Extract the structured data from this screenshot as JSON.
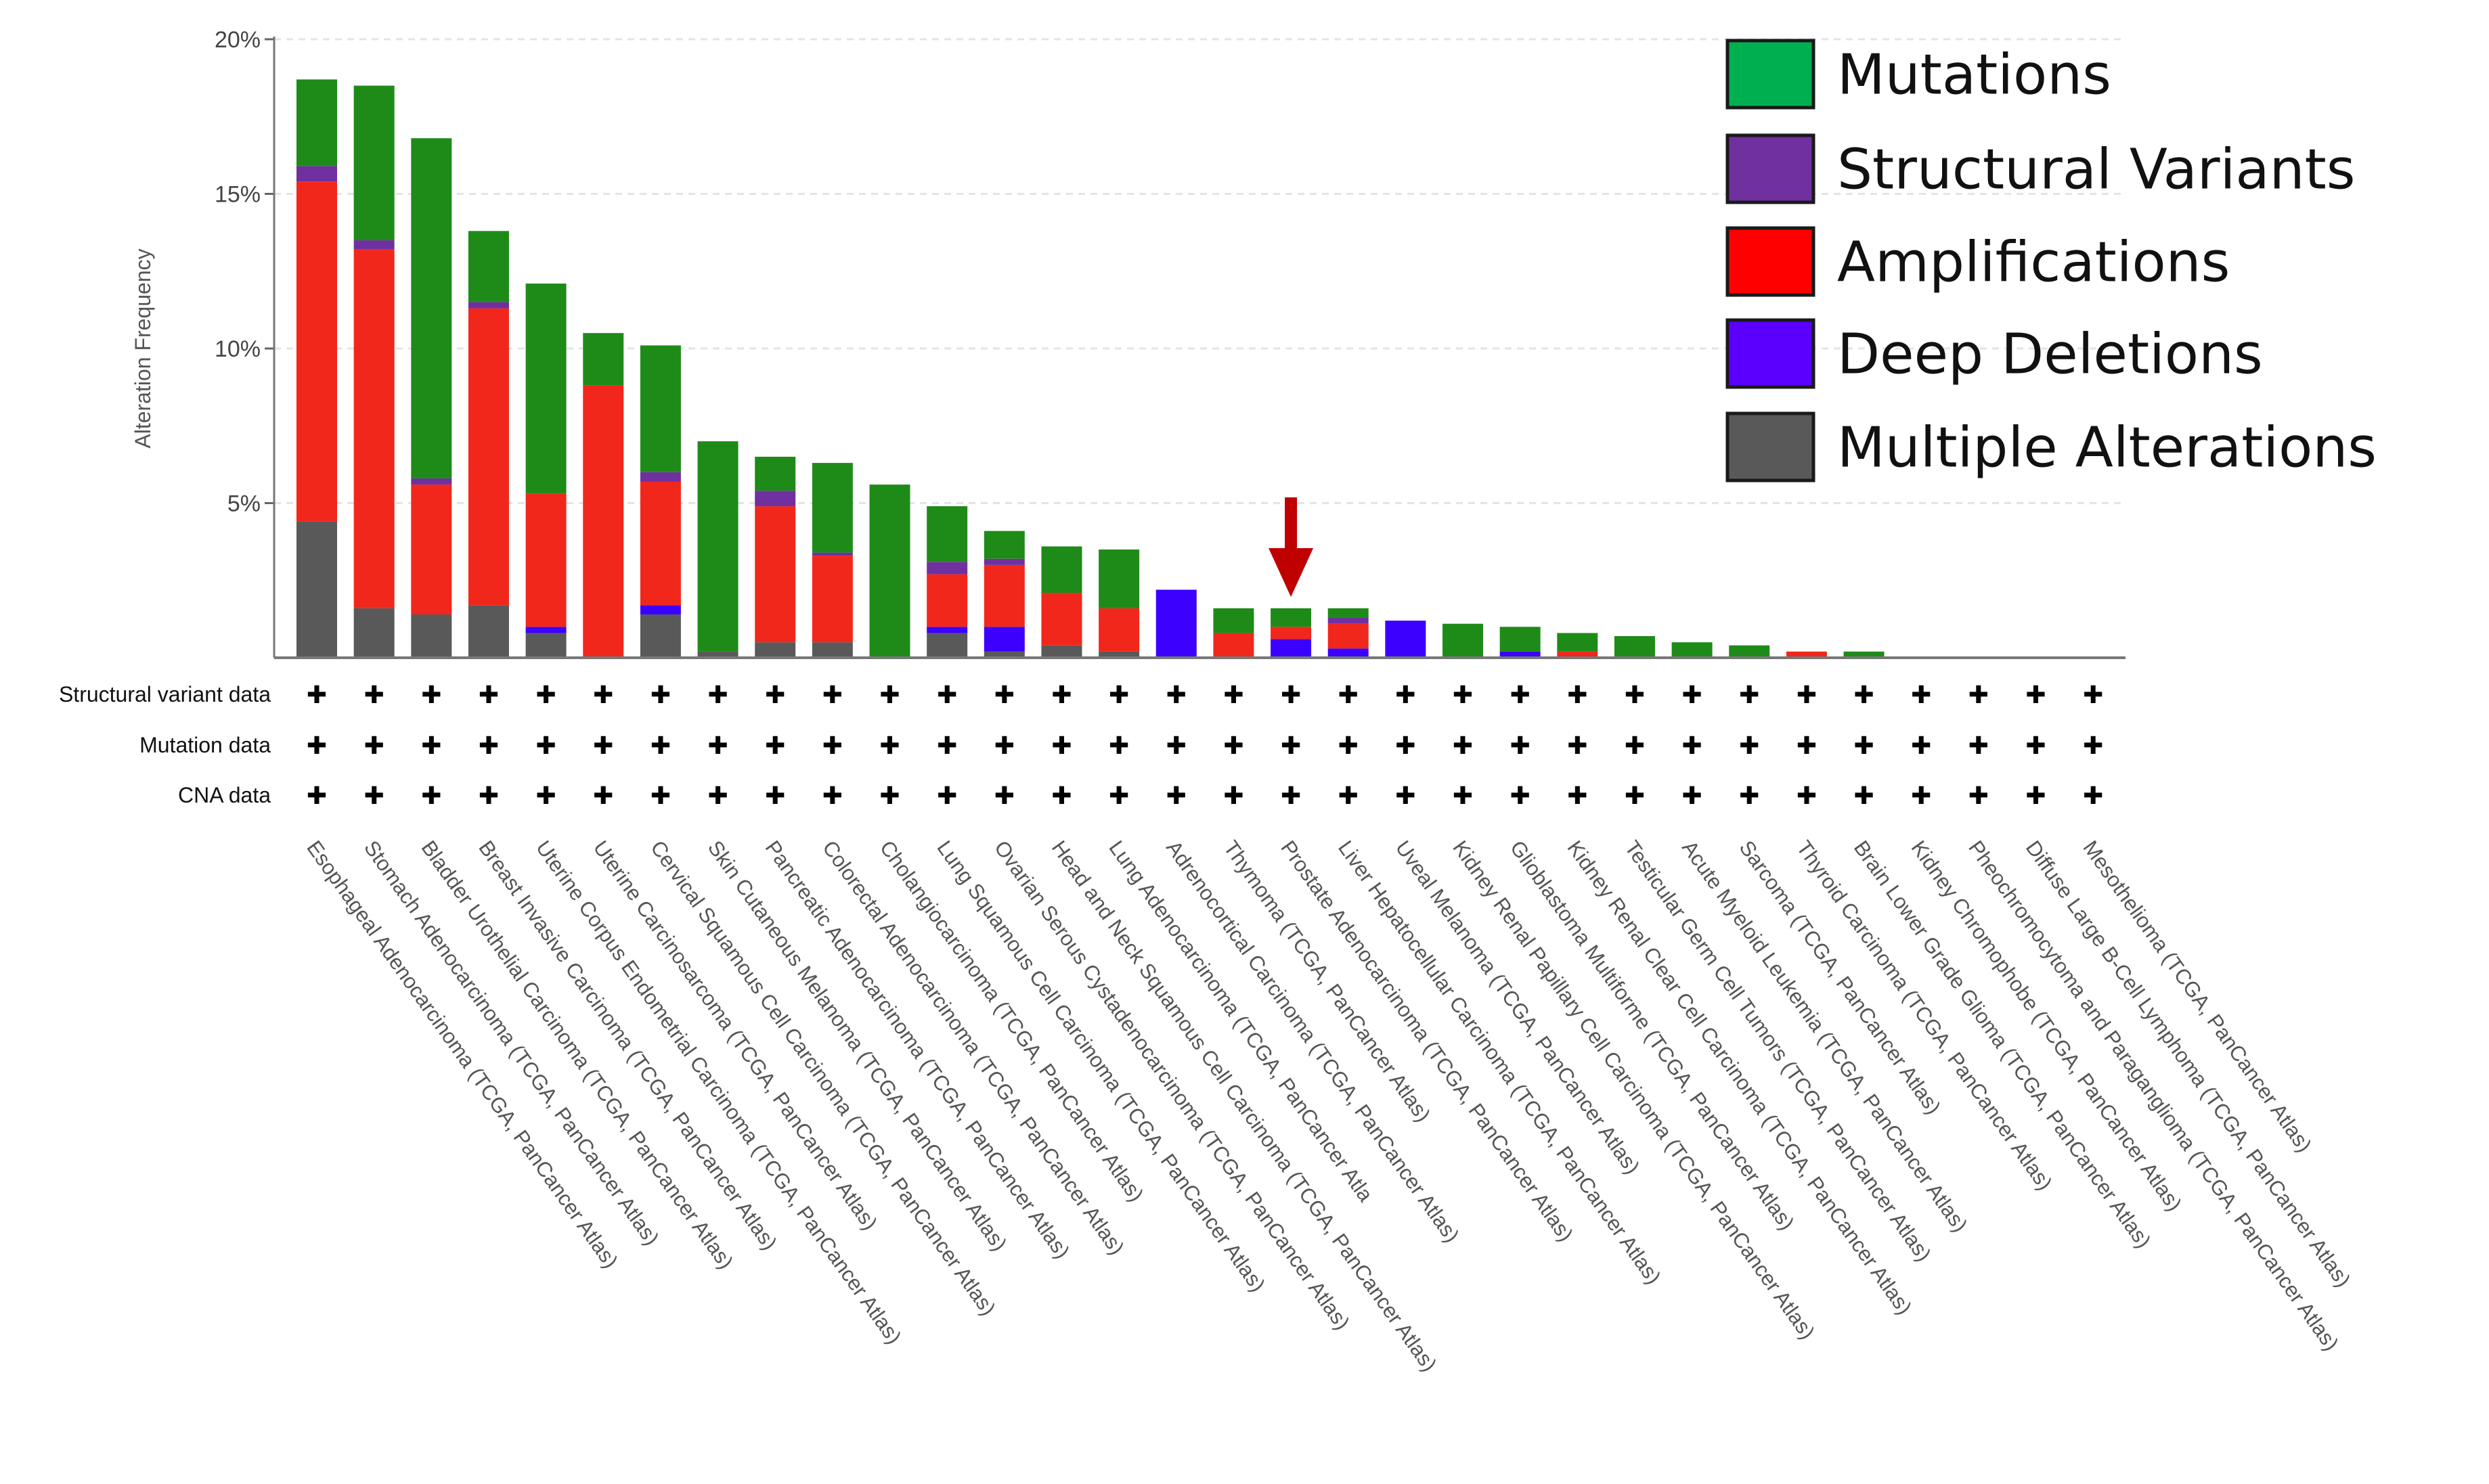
{
  "chart_data": {
    "type": "bar",
    "stacked": true,
    "ylabel": "Alteration Frequency",
    "ylim": [
      0,
      20
    ],
    "yticks": [
      "5%",
      "10%",
      "15%",
      "20%"
    ],
    "ytick_values": [
      5,
      10,
      15,
      20
    ],
    "grid": true,
    "legend_position": "top-right",
    "categories": [
      "Esophageal Adenocarcinoma (TCGA, PanCancer Atlas)",
      "Stomach Adenocarcinoma (TCGA, PanCancer Atlas)",
      "Bladder Urothelial Carcinoma (TCGA, PanCancer Atlas)",
      "Breast Invasive Carcinoma (TCGA, PanCancer Atlas)",
      "Uterine Corpus Endometrial Carcinoma (TCGA, PanCancer Atlas)",
      "Uterine Carcinosarcoma (TCGA, PanCancer Atlas)",
      "Cervical Squamous Cell Carcinoma (TCGA, PanCancer Atlas)",
      "Skin Cutaneous Melanoma (TCGA, PanCancer Atlas)",
      "Pancreatic Adenocarcinoma (TCGA, PanCancer Atlas)",
      "Colorectal Adenocarcinoma (TCGA, PanCancer Atlas)",
      "Cholangiocarcinoma (TCGA, PanCancer Atlas)",
      "Lung Squamous Cell Carcinoma (TCGA, PanCancer Atlas)",
      "Ovarian Serous Cystadenocarcinoma (TCGA, PanCancer Atlas)",
      "Head and Neck Squamous Cell Carcinoma (TCGA, PanCancer Atlas)",
      "Lung Adenocarcinoma (TCGA, PanCancer Atla",
      "Adrenocortical Carcinoma (TCGA, PanCancer Atlas)",
      "Thymoma (TCGA, PanCancer Atlas)",
      "Prostate Adenocarcinoma (TCGA, PanCancer Atlas)",
      "Liver Hepatocellular Carcinoma (TCGA, PanCancer Atlas)",
      "Uveal Melanoma (TCGA, PanCancer Atlas)",
      "Kidney Renal Papillary Cell Carcinoma (TCGA, PanCancer Atlas)",
      "Glioblastoma Multiforme (TCGA, PanCancer Atlas)",
      "Kidney Renal Clear Cell Carcinoma (TCGA, PanCancer Atlas)",
      "Testicular Germ Cell Tumors (TCGA, PanCancer Atlas)",
      "Acute Myeloid Leukemia (TCGA, PanCancer Atlas)",
      "Sarcoma (TCGA, PanCancer Atlas)",
      "Thyroid Carcinoma (TCGA, PanCancer Atlas)",
      "Brain Lower Grade Glioma (TCGA, PanCancer Atlas)",
      "Kidney Chromophobe (TCGA, PanCancer Atlas)",
      "Pheochromocytoma and Paraganglioma (TCGA, PanCancer Atlas)",
      "Diffuse Large B-Cell Lymphoma (TCGA, PanCancer Atlas)",
      "Mesothelioma (TCGA, PanCancer Atlas)"
    ],
    "series": [
      {
        "name": "Multiple Alterations",
        "color": "#595959",
        "values": [
          4.4,
          1.6,
          1.4,
          1.7,
          0.8,
          0,
          1.4,
          0.2,
          0.5,
          0.5,
          0,
          0.8,
          0.2,
          0.4,
          0.2,
          0,
          0,
          0,
          0,
          0,
          0,
          0,
          0,
          0,
          0,
          0,
          0,
          0,
          0,
          0,
          0,
          0
        ]
      },
      {
        "name": "Deep Deletions",
        "color": "#3b00ff",
        "values": [
          0,
          0,
          0,
          0,
          0.2,
          0,
          0.3,
          0,
          0,
          0,
          0,
          0.2,
          0.8,
          0,
          0,
          2.2,
          0,
          0.6,
          0.3,
          1.2,
          0,
          0.2,
          0,
          0,
          0,
          0,
          0,
          0,
          0,
          0,
          0,
          0
        ]
      },
      {
        "name": "Amplifications",
        "color": "#f2271c",
        "values": [
          11.0,
          11.6,
          4.2,
          9.6,
          4.3,
          8.8,
          4.0,
          0,
          4.4,
          2.8,
          0,
          1.7,
          2.0,
          1.7,
          1.4,
          0,
          0.8,
          0.4,
          0.8,
          0,
          0,
          0,
          0.2,
          0,
          0,
          0,
          0.2,
          0,
          0,
          0,
          0,
          0
        ]
      },
      {
        "name": "Structural Variants",
        "color": "#7030a0",
        "values": [
          0.5,
          0.3,
          0.2,
          0.2,
          0,
          0,
          0.3,
          0,
          0.5,
          0.1,
          0,
          0.4,
          0.2,
          0,
          0,
          0,
          0,
          0,
          0.2,
          0,
          0,
          0,
          0,
          0,
          0,
          0,
          0,
          0,
          0,
          0,
          0,
          0
        ]
      },
      {
        "name": "Mutations",
        "color": "#1e8b19",
        "values": [
          2.8,
          5.0,
          11.0,
          2.3,
          6.8,
          1.7,
          4.1,
          6.8,
          1.1,
          2.9,
          5.6,
          1.8,
          0.9,
          1.5,
          1.9,
          0,
          0.8,
          0.6,
          0.3,
          0,
          1.1,
          0.8,
          0.6,
          0.7,
          0.5,
          0.4,
          0,
          0.2,
          0,
          0,
          0,
          0
        ]
      }
    ],
    "legend": [
      {
        "label": "Mutations",
        "color": "#00b050"
      },
      {
        "label": "Structural Variants",
        "color": "#7030a0"
      },
      {
        "label": "Amplifications",
        "color": "#ff0000"
      },
      {
        "label": "Deep Deletions",
        "color": "#5b00ff"
      },
      {
        "label": "Multiple Alterations",
        "color": "#595959"
      }
    ],
    "data_rows": [
      "Structural variant data",
      "Mutation data",
      "CNA data"
    ],
    "row_symbol": "✚",
    "highlight": {
      "category": "Prostate Adenocarcinoma (TCGA, PanCancer Atlas)",
      "arrow_color": "#c00000"
    }
  }
}
